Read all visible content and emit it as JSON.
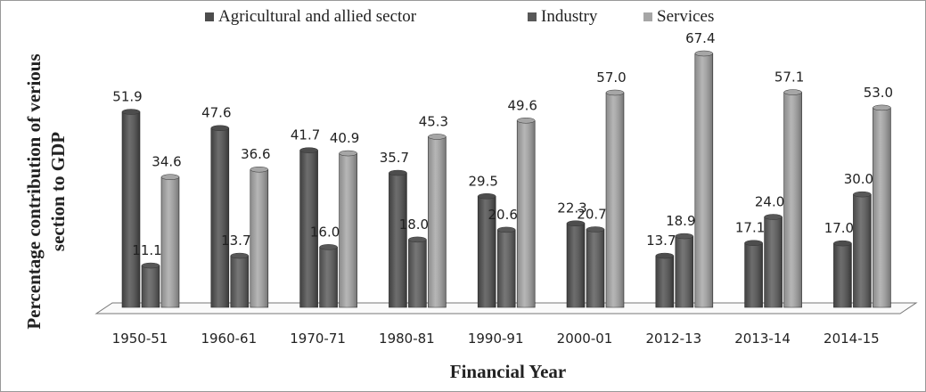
{
  "chart_data": {
    "type": "bar",
    "xlabel": "Financial Year",
    "ylabel": [
      "Percentage contribution of verious",
      "section to GDP"
    ],
    "categories": [
      "1950-51",
      "1960-61",
      "1970-71",
      "1980-81",
      "1990-91",
      "2000-01",
      "2012-13",
      "2013-14",
      "2014-15"
    ],
    "series": [
      {
        "name": "Agricultural and allied sector",
        "color": "#4d4d4d",
        "values": [
          51.9,
          47.6,
          41.7,
          35.7,
          29.5,
          22.3,
          13.7,
          17.1,
          17.0
        ],
        "value_labels": [
          "51.9",
          "47.6",
          "41.7",
          "35.7",
          "29.5",
          "22.3",
          "13.7",
          "17.1",
          "17.0"
        ]
      },
      {
        "name": "Industry",
        "color": "#585858",
        "values": [
          11.1,
          13.7,
          16.0,
          18.0,
          20.6,
          20.7,
          18.9,
          24.0,
          30.0
        ],
        "value_labels": [
          "11.1",
          "13.7",
          "16.0",
          "18.0",
          "20.6",
          "20.7",
          "18.9",
          "24.0",
          "30.0"
        ]
      },
      {
        "name": "Services",
        "color": "#a6a6a6",
        "values": [
          34.6,
          36.6,
          40.9,
          45.3,
          49.6,
          57.0,
          67.4,
          57.1,
          53.0
        ],
        "value_labels": [
          "34.6",
          "36.6",
          "40.9",
          "45.3",
          "49.6",
          "57.0",
          "67.4",
          "57.1",
          "53.0"
        ]
      }
    ],
    "ylim": [
      0,
      70
    ],
    "legend": "top"
  }
}
